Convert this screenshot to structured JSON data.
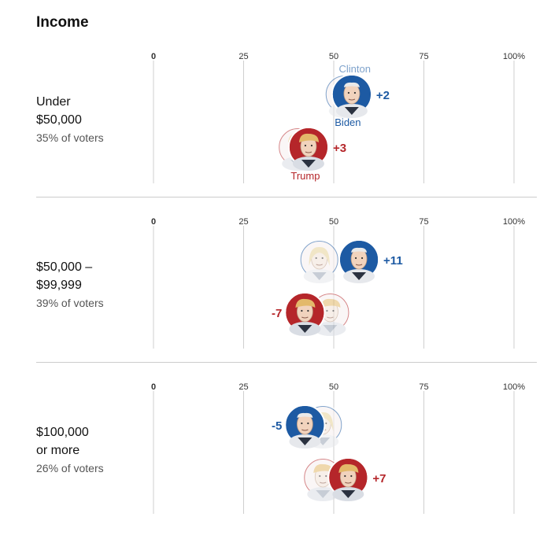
{
  "header": {
    "title": "Income"
  },
  "colors": {
    "dem": "#1d5aa3",
    "rep": "#b5262a",
    "dem_prev": "#7fa3cc",
    "rep_prev": "#d08c8a",
    "axis": "#cfcfcf",
    "tick": "#333333"
  },
  "legend": {
    "clinton": "Clinton",
    "biden": "Biden",
    "trump": "Trump"
  },
  "chart_data": {
    "type": "scatter",
    "title": "Income",
    "x_domain": [
      0,
      100
    ],
    "ticks": [
      "0",
      "25",
      "50",
      "75",
      "100%"
    ],
    "tick_values": [
      0,
      25,
      50,
      75,
      100
    ],
    "groups": [
      {
        "name": "Under $50,000",
        "name_lines": [
          "Under",
          "$50,000"
        ],
        "share_label": "35% of voters",
        "clinton": 53,
        "biden": 55,
        "dem_change": "+2",
        "trump_prev": 40,
        "trump": 43,
        "rep_change": "+3"
      },
      {
        "name": "$50,000 – $99,999",
        "name_lines": [
          "$50,000 –",
          "$99,999"
        ],
        "share_label": "39% of voters",
        "clinton": 46,
        "biden": 57,
        "dem_change": "+11",
        "trump_prev": 49,
        "trump": 42,
        "rep_change": "-7"
      },
      {
        "name": "$100,000 or more",
        "name_lines": [
          "$100,000",
          "or more"
        ],
        "share_label": "26% of voters",
        "clinton": 47,
        "biden": 42,
        "dem_change": "-5",
        "trump_prev": 47,
        "trump": 54,
        "rep_change": "+7"
      }
    ]
  }
}
